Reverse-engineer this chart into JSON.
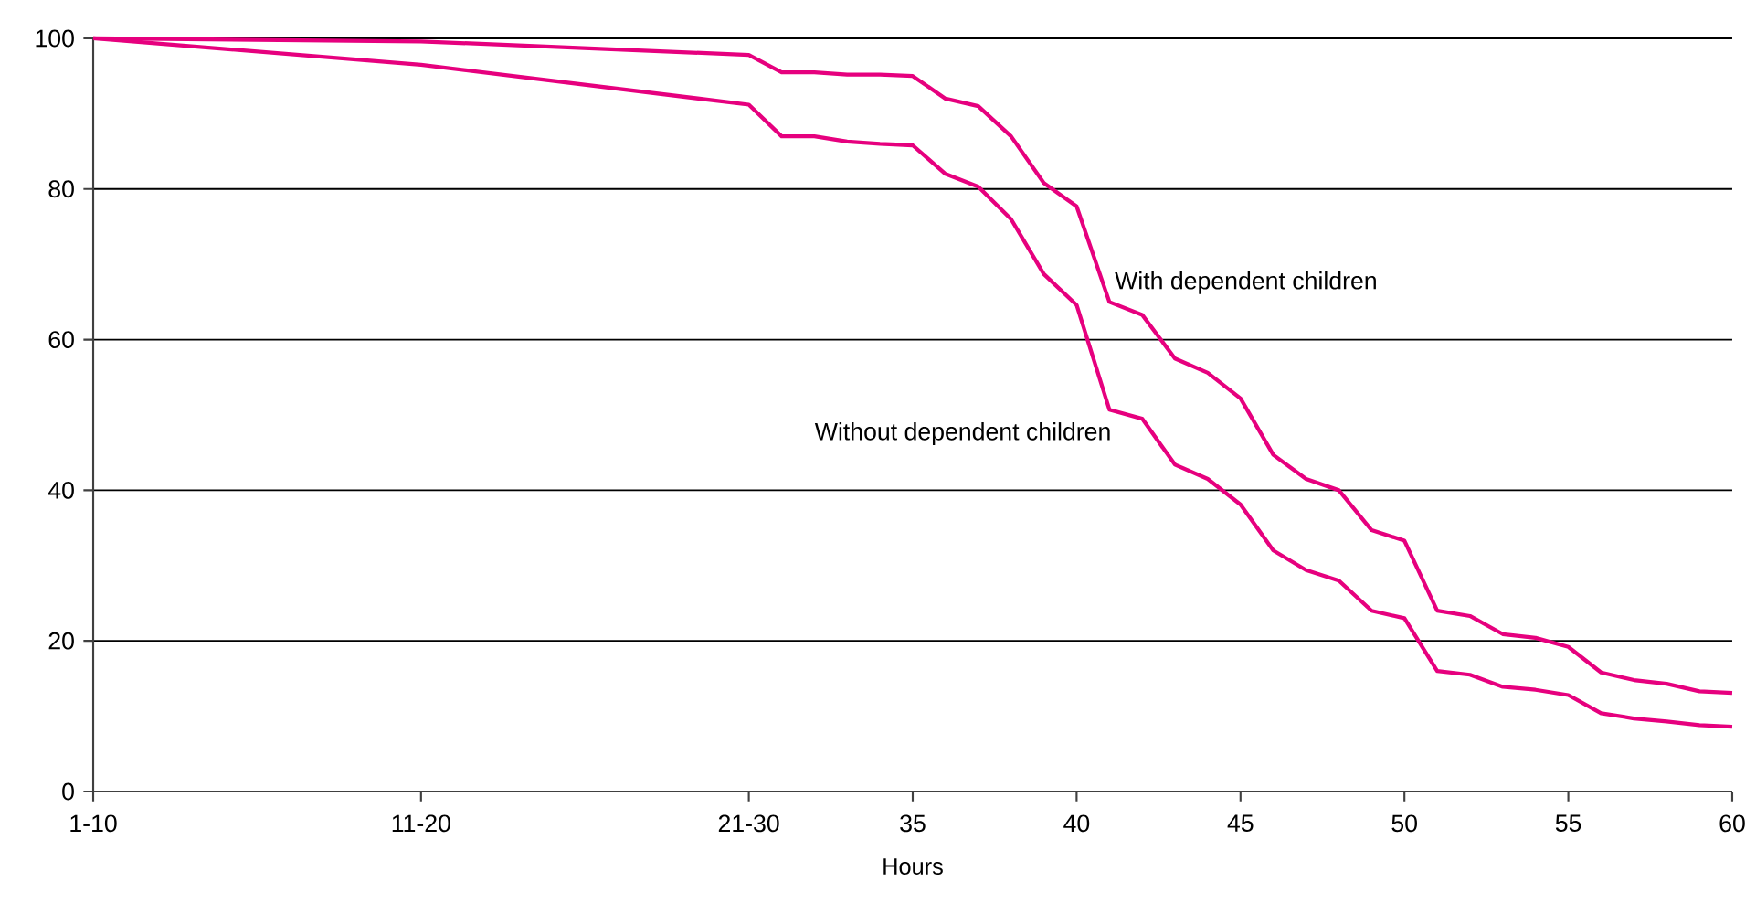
{
  "chart_data": {
    "type": "line",
    "xlabel": "Hours",
    "x": [
      10,
      20,
      30,
      31,
      32,
      33,
      34,
      35,
      36,
      37,
      38,
      39,
      40,
      41,
      42,
      43,
      44,
      45,
      46,
      47,
      48,
      49,
      50,
      51,
      52,
      53,
      54,
      55,
      56,
      57,
      58,
      59,
      60
    ],
    "series": [
      {
        "name": "With dependent children",
        "color": "#e6007e",
        "values": [
          100,
          99.6,
          97.8,
          95.5,
          95.5,
          95.2,
          95.2,
          95.0,
          92,
          91,
          87,
          80.8,
          77.7,
          65,
          63.3,
          57.5,
          55.6,
          52.2,
          44.7,
          41.5,
          40,
          34.7,
          33.3,
          24,
          23.3,
          20.9,
          20.4,
          19.2,
          15.8,
          14.8,
          14.3,
          13.3,
          13.1
        ]
      },
      {
        "name": "Without dependent children",
        "color": "#e6007e",
        "values": [
          100,
          96.5,
          91.2,
          87,
          87,
          86.3,
          86,
          85.8,
          82,
          80.3,
          76,
          68.7,
          64.6,
          50.7,
          49.5,
          43.4,
          41.5,
          38.1,
          32,
          29.4,
          28,
          24,
          23,
          16,
          15.5,
          13.9,
          13.5,
          12.8,
          10.4,
          9.7,
          9.3,
          8.8,
          8.6
        ]
      }
    ],
    "xlim": [
      10,
      60
    ],
    "ylim": [
      0,
      100
    ],
    "xticks": [
      {
        "value": 10,
        "label": "1-10"
      },
      {
        "value": 20,
        "label": "11-20"
      },
      {
        "value": 30,
        "label": "21-30"
      },
      35,
      40,
      45,
      50,
      55,
      60
    ],
    "yticks": [
      0,
      20,
      40,
      60,
      80,
      100
    ],
    "grid": "y"
  }
}
